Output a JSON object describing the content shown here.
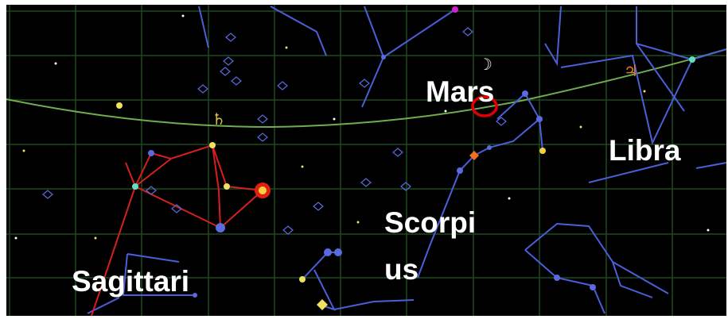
{
  "labels": {
    "mars": "Mars",
    "libra": "Libra",
    "scorpius": [
      "Scorpi",
      "us"
    ],
    "sagittarius": "Sagittari"
  },
  "symbols": {
    "saturn": "♄",
    "jupiter": "♃",
    "moon": "☽"
  }
}
